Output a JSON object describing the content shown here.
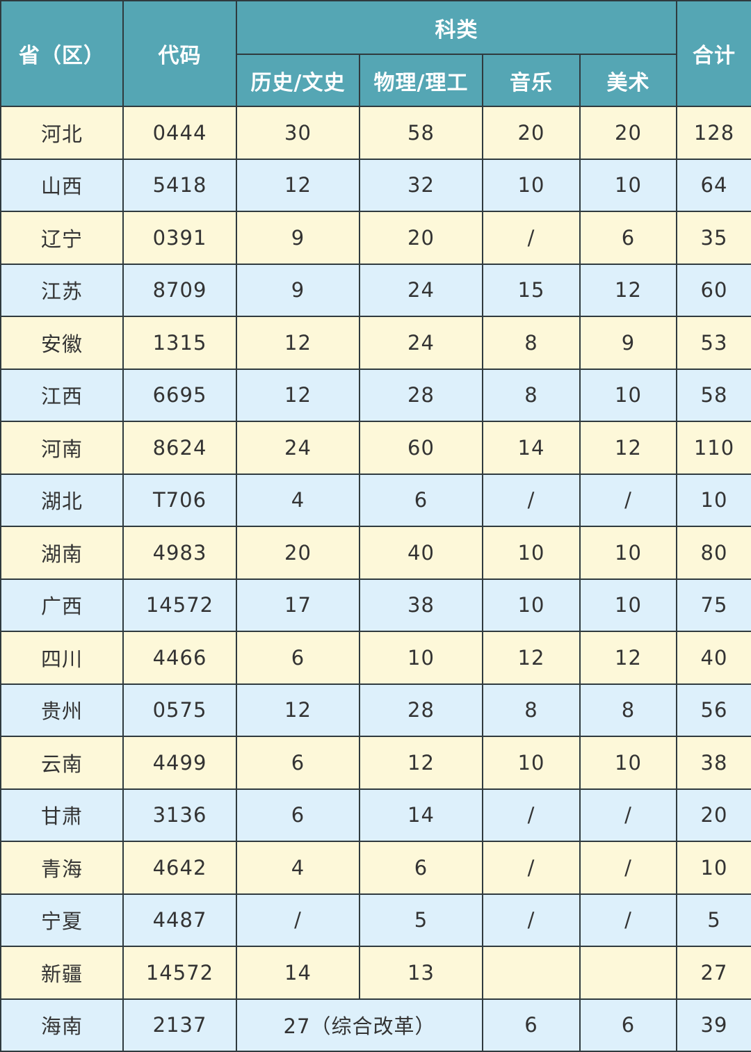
{
  "header": {
    "province": "省（区）",
    "code": "代码",
    "category": "科类",
    "total": "合计",
    "subcategories": [
      "历史/文史",
      "物理/理工",
      "音乐",
      "美术"
    ]
  },
  "colors": {
    "header_bg": "#55a6b4",
    "row_odd_bg": "#fdf8d9",
    "row_even_bg": "#ddf0fb",
    "border": "#2f3a3e"
  },
  "rows": [
    {
      "province": "河北",
      "code": "0444",
      "history": "30",
      "physics": "58",
      "music": "20",
      "art": "20",
      "total": "128"
    },
    {
      "province": "山西",
      "code": "5418",
      "history": "12",
      "physics": "32",
      "music": "10",
      "art": "10",
      "total": "64"
    },
    {
      "province": "辽宁",
      "code": "0391",
      "history": "9",
      "physics": "20",
      "music": "/",
      "art": "6",
      "total": "35"
    },
    {
      "province": "江苏",
      "code": "8709",
      "history": "9",
      "physics": "24",
      "music": "15",
      "art": "12",
      "total": "60"
    },
    {
      "province": "安徽",
      "code": "1315",
      "history": "12",
      "physics": "24",
      "music": "8",
      "art": "9",
      "total": "53"
    },
    {
      "province": "江西",
      "code": "6695",
      "history": "12",
      "physics": "28",
      "music": "8",
      "art": "10",
      "total": "58"
    },
    {
      "province": "河南",
      "code": "8624",
      "history": "24",
      "physics": "60",
      "music": "14",
      "art": "12",
      "total": "110"
    },
    {
      "province": "湖北",
      "code": "T706",
      "history": "4",
      "physics": "6",
      "music": "/",
      "art": "/",
      "total": "10"
    },
    {
      "province": "湖南",
      "code": "4983",
      "history": "20",
      "physics": "40",
      "music": "10",
      "art": "10",
      "total": "80"
    },
    {
      "province": "广西",
      "code": "14572",
      "history": "17",
      "physics": "38",
      "music": "10",
      "art": "10",
      "total": "75"
    },
    {
      "province": "四川",
      "code": "4466",
      "history": "6",
      "physics": "10",
      "music": "12",
      "art": "12",
      "total": "40"
    },
    {
      "province": "贵州",
      "code": "0575",
      "history": "12",
      "physics": "28",
      "music": "8",
      "art": "8",
      "total": "56"
    },
    {
      "province": "云南",
      "code": "4499",
      "history": "6",
      "physics": "12",
      "music": "10",
      "art": "10",
      "total": "38"
    },
    {
      "province": "甘肃",
      "code": "3136",
      "history": "6",
      "physics": "14",
      "music": "/",
      "art": "/",
      "total": "20"
    },
    {
      "province": "青海",
      "code": "4642",
      "history": "4",
      "physics": "6",
      "music": "/",
      "art": "/",
      "total": "10"
    },
    {
      "province": "宁夏",
      "code": "4487",
      "history": "/",
      "physics": "5",
      "music": "/",
      "art": "/",
      "total": "5"
    },
    {
      "province": "新疆",
      "code": "14572",
      "history": "14",
      "physics": "13",
      "music": "",
      "art": "",
      "total": "27"
    }
  ],
  "last_row": {
    "province": "海南",
    "code": "2137",
    "combined": "27（综合改革）",
    "music": "6",
    "art": "6",
    "total": "39"
  }
}
